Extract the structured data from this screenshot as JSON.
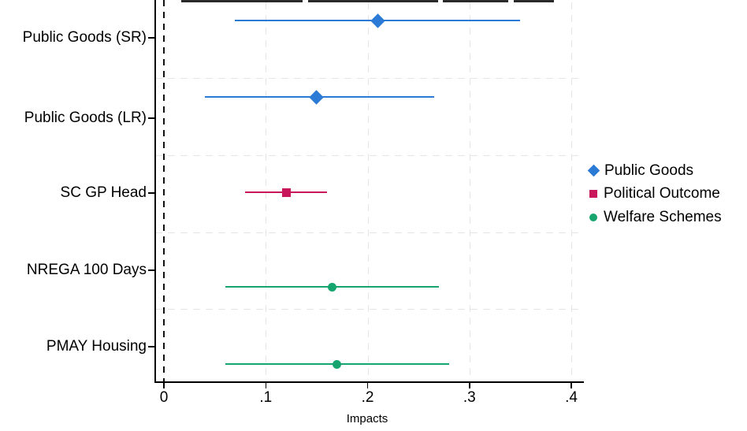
{
  "chart_data": {
    "type": "scatter",
    "subtype": "coefficient-forest-plot",
    "title": "",
    "xlabel": "Impacts",
    "ylabel": "",
    "xlim": [
      -0.012,
      0.415
    ],
    "grid": true,
    "gridline_style": "dashed-light-gray",
    "reference_line_x": 0,
    "legend_position": "right-outside-middle",
    "x_ticks": [
      {
        "value": 0,
        "label": "0"
      },
      {
        "value": 0.1,
        "label": ".1"
      },
      {
        "value": 0.2,
        "label": ".2"
      },
      {
        "value": 0.3,
        "label": ".3"
      },
      {
        "value": 0.4,
        "label": ".4"
      }
    ],
    "categories": [
      "Public Goods (SR)",
      "Public Goods (LR)",
      "SC GP Head",
      "NREGA 100 Days",
      "PMAY Housing"
    ],
    "series": [
      {
        "name": "Public Goods",
        "marker": "diamond",
        "color": "#2b7ad6",
        "points": [
          {
            "category": "Public Goods (SR)",
            "estimate": 0.21,
            "ci_low": 0.07,
            "ci_high": 0.35
          },
          {
            "category": "Public Goods (LR)",
            "estimate": 0.15,
            "ci_low": 0.04,
            "ci_high": 0.265
          }
        ]
      },
      {
        "name": "Political Outcome",
        "marker": "square",
        "color": "#c9175c",
        "points": [
          {
            "category": "SC GP Head",
            "estimate": 0.12,
            "ci_low": 0.08,
            "ci_high": 0.16
          }
        ]
      },
      {
        "name": "Welfare Schemes",
        "marker": "circle",
        "color": "#16a46f",
        "points": [
          {
            "category": "NREGA 100 Days",
            "estimate": 0.165,
            "ci_low": 0.06,
            "ci_high": 0.27
          },
          {
            "category": "PMAY Housing",
            "estimate": 0.17,
            "ci_low": 0.06,
            "ci_high": 0.28
          }
        ]
      }
    ]
  },
  "legend": {
    "entries": [
      {
        "label": "Public Goods",
        "marker": "diamond",
        "color": "#2b7ad6"
      },
      {
        "label": "Political Outcome",
        "marker": "square",
        "color": "#c9175c"
      },
      {
        "label": "Welfare Schemes",
        "marker": "circle",
        "color": "#16a46f"
      }
    ]
  },
  "colors": {
    "public_goods": "#2b7ad6",
    "political_outcome": "#c9175c",
    "welfare_schemes": "#16a46f",
    "axis": "#000000",
    "gridline": "#e5e5e5",
    "background": "#ffffff"
  }
}
